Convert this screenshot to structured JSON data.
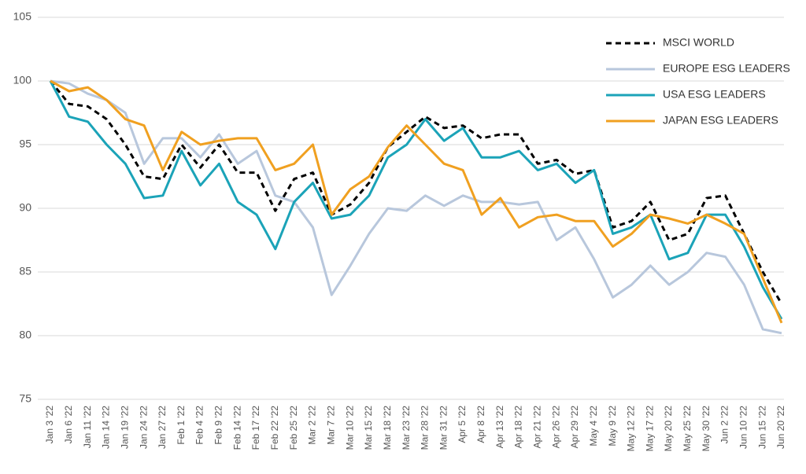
{
  "chart_data": {
    "type": "line",
    "categories": [
      "Jan 3 '22",
      "Jan 6 '22",
      "Jan 11 '22",
      "Jan 14 '22",
      "Jan 19 '22",
      "Jan 24 '22",
      "Jan 27 '22",
      "Feb 1 '22",
      "Feb 4 '22",
      "Feb 9 '22",
      "Feb 14 '22",
      "Feb 17 '22",
      "Feb 22 '22",
      "Feb 25 '22",
      "Mar 2 '22",
      "Mar 7 '22",
      "Mar 10 '22",
      "Mar 15 '22",
      "Mar 18 '22",
      "Mar 23 '22",
      "Mar 28 '22",
      "Mar 31 '22",
      "Apr 5 '22",
      "Apr 8 '22",
      "Apr 13 '22",
      "Apr 18 '22",
      "Apr 21 '22",
      "Apr 26 '22",
      "Apr 29 '22",
      "May 4 '22",
      "May 9 '22",
      "May 12 '22",
      "May 17 '22",
      "May 20 '22",
      "May 25 '22",
      "May 30 '22",
      "Jun 2 '22",
      "Jun 10 '22",
      "Jun 15 '22",
      "Jun 20 '22"
    ],
    "series": [
      {
        "name": "MSCI WORLD",
        "color": "#000000",
        "line_style": "dashed",
        "values": [
          100,
          98.2,
          98,
          97,
          95,
          92.5,
          92.3,
          95,
          93.2,
          95,
          92.8,
          92.8,
          89.8,
          92.3,
          92.8,
          89.5,
          90.3,
          92,
          94.8,
          96,
          97.2,
          96.3,
          96.5,
          95.5,
          95.8,
          95.8,
          93.5,
          93.8,
          92.7,
          93,
          88.5,
          89,
          90.5,
          87.5,
          88,
          90.8,
          91,
          88,
          85,
          82.5
        ]
      },
      {
        "name": "EUROPE ESG LEADERS",
        "color": "#b8c7dc",
        "line_style": "solid",
        "values": [
          100,
          99.8,
          99,
          98.5,
          97.5,
          93.5,
          95.5,
          95.5,
          94,
          95.8,
          93.5,
          94.5,
          91,
          90.5,
          88.5,
          83.2,
          85.5,
          88,
          90,
          89.8,
          91,
          90.2,
          91,
          90.5,
          90.5,
          90.3,
          90.5,
          87.5,
          88.5,
          86,
          83,
          84,
          85.5,
          84,
          85,
          86.5,
          86.2,
          84,
          80.5,
          80.2
        ]
      },
      {
        "name": "USA ESG LEADERS",
        "color": "#1ba3b8",
        "line_style": "solid",
        "values": [
          100,
          97.2,
          96.8,
          95,
          93.5,
          90.8,
          91,
          94.5,
          91.8,
          93.5,
          90.5,
          89.5,
          86.8,
          90.5,
          92,
          89.2,
          89.5,
          91,
          94,
          95,
          97,
          95.3,
          96.3,
          94,
          94,
          94.5,
          93,
          93.5,
          92,
          93,
          88,
          88.5,
          89.5,
          86,
          86.5,
          89.5,
          89.5,
          87,
          83.8,
          81.3
        ]
      },
      {
        "name": "JAPAN ESG LEADERS",
        "color": "#f0a020",
        "line_style": "solid",
        "values": [
          100,
          99.2,
          99.5,
          98.5,
          97,
          96.5,
          93,
          96,
          95,
          95.3,
          95.5,
          95.5,
          93,
          93.5,
          95,
          89.5,
          91.5,
          92.5,
          94.8,
          96.5,
          95,
          93.5,
          93,
          89.5,
          90.8,
          88.5,
          89.3,
          89.5,
          89,
          89,
          87,
          88,
          89.5,
          89.2,
          88.8,
          89.5,
          88.8,
          88,
          84.5,
          81
        ]
      }
    ],
    "ylim": [
      75,
      105
    ],
    "yticks": [
      75,
      80,
      85,
      90,
      95,
      100,
      105
    ],
    "grid": true,
    "legend": "upper right"
  }
}
